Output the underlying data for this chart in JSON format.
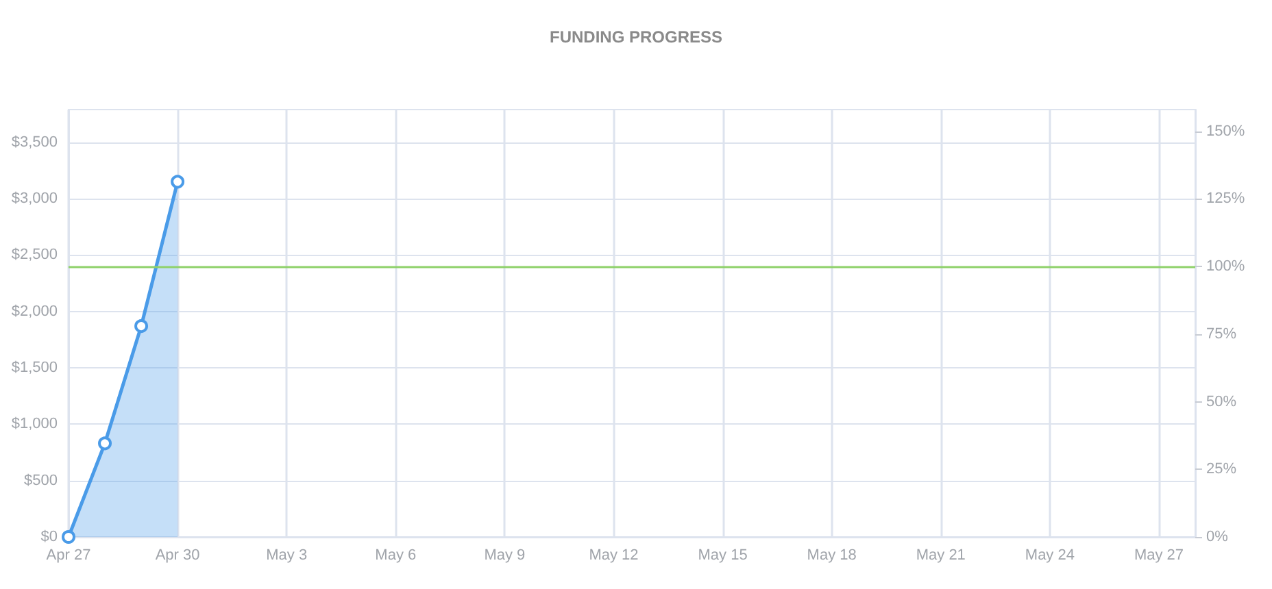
{
  "chart_data": {
    "type": "area",
    "title": "FUNDING PROGRESS",
    "x": [
      "--04-27",
      "--04-28",
      "--04-29",
      "--04-30"
    ],
    "series": [
      {
        "color": "#4a9be8",
        "values": [
          0,
          830,
          1870,
          3150
        ]
      }
    ],
    "xlim": [
      "--04-27",
      "--05-28"
    ],
    "xticks": [
      {
        "value": "--04-27",
        "label": "Apr 27"
      },
      {
        "value": "--04-30",
        "label": "Apr 30"
      },
      {
        "value": "--05-03",
        "label": "May 3"
      },
      {
        "value": "--05-06",
        "label": "May 6"
      },
      {
        "value": "--05-09",
        "label": "May 9"
      },
      {
        "value": "--05-12",
        "label": "May 12"
      },
      {
        "value": "--05-15",
        "label": "May 15"
      },
      {
        "value": "--05-18",
        "label": "May 18"
      },
      {
        "value": "--05-21",
        "label": "May 21"
      },
      {
        "value": "--05-24",
        "label": "May 24"
      },
      {
        "value": "--05-27",
        "label": "May 27"
      }
    ],
    "ylim": [
      0,
      3790
    ],
    "yticks": [
      {
        "value": 0,
        "label": "$0"
      },
      {
        "value": 500,
        "label": "$500"
      },
      {
        "value": 1000,
        "label": "$1,000"
      },
      {
        "value": 1500,
        "label": "$1,500"
      },
      {
        "value": 2000,
        "label": "$2,000"
      },
      {
        "value": 2500,
        "label": "$2,500"
      },
      {
        "value": 3000,
        "label": "$3,000"
      },
      {
        "value": 3500,
        "label": "$3,500"
      }
    ],
    "y2lim": [
      0,
      158
    ],
    "y2ticks": [
      {
        "value": 0,
        "label": "0%"
      },
      {
        "value": 25,
        "label": "25%"
      },
      {
        "value": 50,
        "label": "50%"
      },
      {
        "value": 75,
        "label": "75%"
      },
      {
        "value": 100,
        "label": "100%"
      },
      {
        "value": 125,
        "label": "125%"
      },
      {
        "value": 150,
        "label": "150%"
      }
    ],
    "ref_lines": [
      {
        "axis": "y2",
        "value": 100,
        "color": "#8fd16a"
      }
    ],
    "grid": true,
    "marker": "circle"
  }
}
